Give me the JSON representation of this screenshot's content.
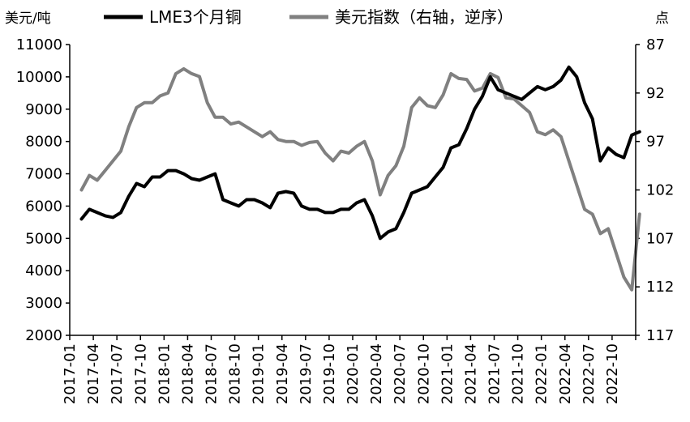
{
  "chart_data": {
    "type": "line",
    "title": "",
    "left_unit": "美元/吨",
    "right_unit": "点",
    "xlabel": "",
    "ylabel": "",
    "ylim": [
      2000,
      11000
    ],
    "y_ticks": [
      "11000",
      "10000",
      "9000",
      "8000",
      "7000",
      "6000",
      "5000",
      "4000",
      "3000",
      "2000"
    ],
    "y2lim": [
      87,
      117
    ],
    "y2_inverted": true,
    "y2_ticks": [
      "87",
      "92",
      "97",
      "102",
      "107",
      "112",
      "117"
    ],
    "x_ticks": [
      "2017-01",
      "2017-04",
      "2017-07",
      "2017-10",
      "2018-01",
      "2018-04",
      "2018-07",
      "2018-10",
      "2019-01",
      "2019-04",
      "2019-07",
      "2019-10",
      "2020-01",
      "2020-04",
      "2020-07",
      "2020-10",
      "2021-01",
      "2021-04",
      "2021-07",
      "2021-10",
      "2022-01",
      "2022-04",
      "2022-07",
      "2022-10"
    ],
    "legend_position": "top",
    "series": [
      {
        "name": "LME3个月铜",
        "axis": "left",
        "color": "#000000",
        "x": [
          "2017-01",
          "2017-02",
          "2017-03",
          "2017-04",
          "2017-05",
          "2017-06",
          "2017-07",
          "2017-08",
          "2017-09",
          "2017-10",
          "2017-11",
          "2017-12",
          "2018-01",
          "2018-02",
          "2018-03",
          "2018-04",
          "2018-05",
          "2018-06",
          "2018-07",
          "2018-08",
          "2018-09",
          "2018-10",
          "2018-11",
          "2018-12",
          "2019-01",
          "2019-02",
          "2019-03",
          "2019-04",
          "2019-05",
          "2019-06",
          "2019-07",
          "2019-08",
          "2019-09",
          "2019-10",
          "2019-11",
          "2019-12",
          "2020-01",
          "2020-02",
          "2020-03",
          "2020-04",
          "2020-05",
          "2020-06",
          "2020-07",
          "2020-08",
          "2020-09",
          "2020-10",
          "2020-11",
          "2020-12",
          "2021-01",
          "2021-02",
          "2021-03",
          "2021-04",
          "2021-05",
          "2021-06",
          "2021-07",
          "2021-08",
          "2021-09",
          "2021-10",
          "2021-11",
          "2021-12",
          "2022-01",
          "2022-02",
          "2022-03",
          "2022-04",
          "2022-05",
          "2022-06",
          "2022-07",
          "2022-08",
          "2022-09",
          "2022-10",
          "2022-11",
          "2022-12"
        ],
        "values": [
          5600,
          5900,
          5800,
          5700,
          5650,
          5800,
          6300,
          6700,
          6600,
          6900,
          6900,
          7100,
          7100,
          7000,
          6850,
          6800,
          6900,
          7000,
          6200,
          6100,
          6000,
          6200,
          6200,
          6100,
          5950,
          6400,
          6450,
          6400,
          6000,
          5900,
          5900,
          5800,
          5800,
          5900,
          5900,
          6100,
          6200,
          5700,
          5000,
          5200,
          5300,
          5800,
          6400,
          6500,
          6600,
          6900,
          7200,
          7800,
          7900,
          8400,
          9000,
          9400,
          10000,
          9600,
          9500,
          9400,
          9300,
          9500,
          9700,
          9600,
          9700,
          9900,
          10300,
          10000,
          9200,
          8700,
          7400,
          7800,
          7600,
          7500,
          8200,
          8300
        ]
      },
      {
        "name": "美元指数（右轴，逆序）",
        "axis": "right",
        "color": "#808080",
        "x": [
          "2017-01",
          "2017-02",
          "2017-03",
          "2017-04",
          "2017-05",
          "2017-06",
          "2017-07",
          "2017-08",
          "2017-09",
          "2017-10",
          "2017-11",
          "2017-12",
          "2018-01",
          "2018-02",
          "2018-03",
          "2018-04",
          "2018-05",
          "2018-06",
          "2018-07",
          "2018-08",
          "2018-09",
          "2018-10",
          "2018-11",
          "2018-12",
          "2019-01",
          "2019-02",
          "2019-03",
          "2019-04",
          "2019-05",
          "2019-06",
          "2019-07",
          "2019-08",
          "2019-09",
          "2019-10",
          "2019-11",
          "2019-12",
          "2020-01",
          "2020-02",
          "2020-03",
          "2020-04",
          "2020-05",
          "2020-06",
          "2020-07",
          "2020-08",
          "2020-09",
          "2020-10",
          "2020-11",
          "2020-12",
          "2021-01",
          "2021-02",
          "2021-03",
          "2021-04",
          "2021-05",
          "2021-06",
          "2021-07",
          "2021-08",
          "2021-09",
          "2021-10",
          "2021-11",
          "2021-12",
          "2022-01",
          "2022-02",
          "2022-03",
          "2022-04",
          "2022-05",
          "2022-06",
          "2022-07",
          "2022-08",
          "2022-09",
          "2022-10",
          "2022-11",
          "2022-12"
        ],
        "values": [
          102,
          100.5,
          101,
          100,
          99,
          98,
          95.5,
          93.5,
          93,
          93,
          92.3,
          92,
          90,
          89.5,
          90,
          90.3,
          93,
          94.5,
          94.5,
          95.2,
          95,
          95.5,
          96,
          96.5,
          96,
          96.8,
          97,
          97,
          97.4,
          97.1,
          97,
          98.2,
          99,
          98,
          98.2,
          97.5,
          97,
          99,
          102.5,
          100.5,
          99.5,
          97.5,
          93.5,
          92.5,
          93.3,
          93.5,
          92.2,
          90,
          90.5,
          90.6,
          91.8,
          91.5,
          90,
          90.4,
          92.5,
          92.6,
          93.3,
          94,
          96,
          96.3,
          95.8,
          96.5,
          99,
          101.5,
          104,
          104.5,
          106.5,
          106,
          108.5,
          111,
          112.3,
          104.5
        ]
      }
    ]
  }
}
